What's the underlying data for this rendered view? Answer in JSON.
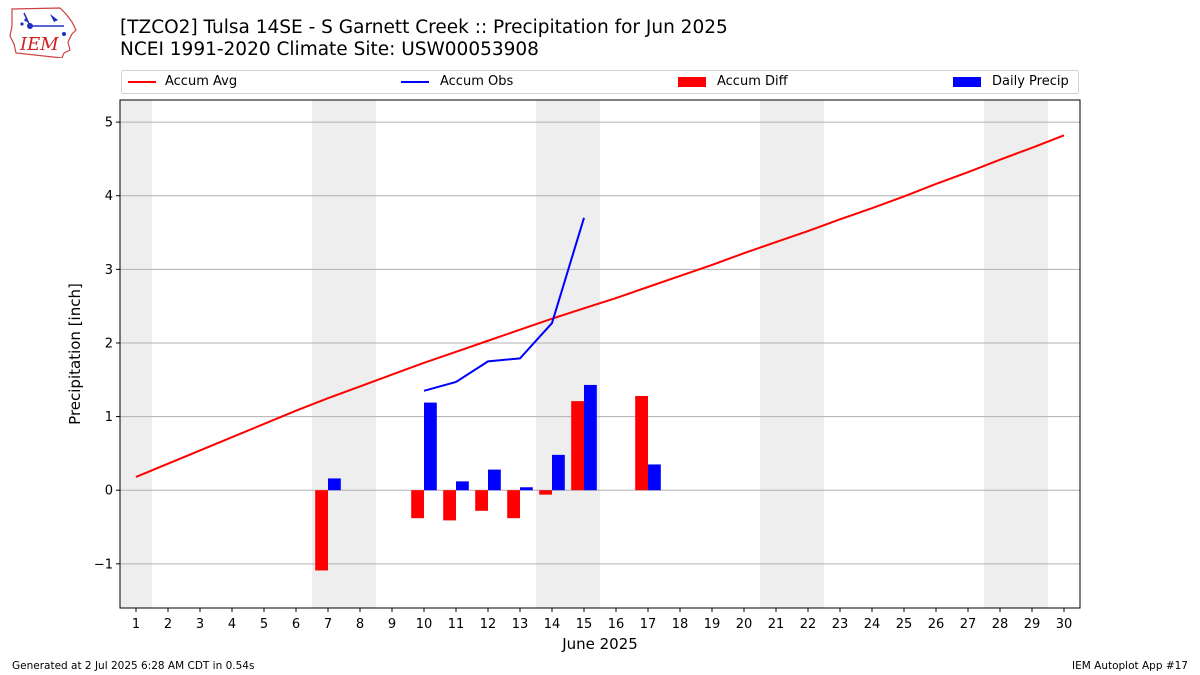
{
  "header": {
    "logo_text": "IEM",
    "title_line1": "[TZCO2] Tulsa 14SE - S Garnett Creek :: Precipitation for Jun 2025",
    "title_line2": "NCEI 1991-2020 Climate Site: USW00053908"
  },
  "legend": {
    "accum_avg": "Accum Avg",
    "accum_obs": "Accum Obs",
    "accum_diff": "Accum Diff",
    "daily_precip": "Daily Precip"
  },
  "footer": {
    "left": "Generated at 2 Jul 2025 6:28 AM CDT in 0.54s",
    "right": "IEM Autoplot App #17"
  },
  "colors": {
    "accum_avg": "#ff0000",
    "accum_obs": "#0000ff",
    "accum_diff": "#ff0000",
    "daily_precip": "#0000ff",
    "weekend_shade": "#eeeeee",
    "grid": "#b0b0b0"
  },
  "chart_data": {
    "type": "bar",
    "xlabel": "June 2025",
    "ylabel": "Precipitation [inch]",
    "xlim": [
      0.5,
      30.5
    ],
    "ylim": [
      -1.6,
      5.3
    ],
    "yticks": [
      -1,
      0,
      1,
      2,
      3,
      4,
      5
    ],
    "ytick_labels": [
      "−1",
      "0",
      "1",
      "2",
      "3",
      "4",
      "5"
    ],
    "x": [
      1,
      2,
      3,
      4,
      5,
      6,
      7,
      8,
      9,
      10,
      11,
      12,
      13,
      14,
      15,
      16,
      17,
      18,
      19,
      20,
      21,
      22,
      23,
      24,
      25,
      26,
      27,
      28,
      29,
      30
    ],
    "weekend_shading": [
      [
        0.5,
        1.5
      ],
      [
        6.5,
        8.5
      ],
      [
        13.5,
        15.5
      ],
      [
        20.5,
        22.5
      ],
      [
        27.5,
        29.5
      ]
    ],
    "grid": "horizontal",
    "legend_position": "top",
    "series": [
      {
        "name": "Accum Avg",
        "type": "line",
        "color": "#ff0000",
        "x": [
          1,
          2,
          3,
          4,
          5,
          6,
          7,
          8,
          9,
          10,
          11,
          12,
          13,
          14,
          15,
          16,
          17,
          18,
          19,
          20,
          21,
          22,
          23,
          24,
          25,
          26,
          27,
          28,
          29,
          30
        ],
        "values": [
          0.18,
          0.36,
          0.54,
          0.72,
          0.9,
          1.08,
          1.25,
          1.41,
          1.57,
          1.73,
          1.88,
          2.03,
          2.18,
          2.33,
          2.47,
          2.61,
          2.76,
          2.91,
          3.06,
          3.22,
          3.37,
          3.52,
          3.68,
          3.83,
          3.99,
          4.16,
          4.32,
          4.49,
          4.65,
          4.82
        ]
      },
      {
        "name": "Accum Obs",
        "type": "line",
        "color": "#0000ff",
        "x": [
          10,
          11,
          12,
          13,
          14,
          15
        ],
        "values": [
          1.35,
          1.47,
          1.75,
          1.79,
          2.27,
          3.7
        ]
      },
      {
        "name": "Accum Diff",
        "type": "bar",
        "color": "#ff0000",
        "x": [
          7,
          10,
          11,
          12,
          13,
          14,
          15,
          17
        ],
        "values": [
          -1.09,
          -0.38,
          -0.41,
          -0.28,
          -0.38,
          -0.06,
          1.21,
          1.28
        ]
      },
      {
        "name": "Daily Precip",
        "type": "bar",
        "color": "#0000ff",
        "x": [
          7,
          10,
          11,
          12,
          13,
          14,
          15,
          17
        ],
        "values": [
          0.16,
          1.19,
          0.12,
          0.28,
          0.04,
          0.48,
          1.43,
          0.35
        ]
      }
    ]
  }
}
